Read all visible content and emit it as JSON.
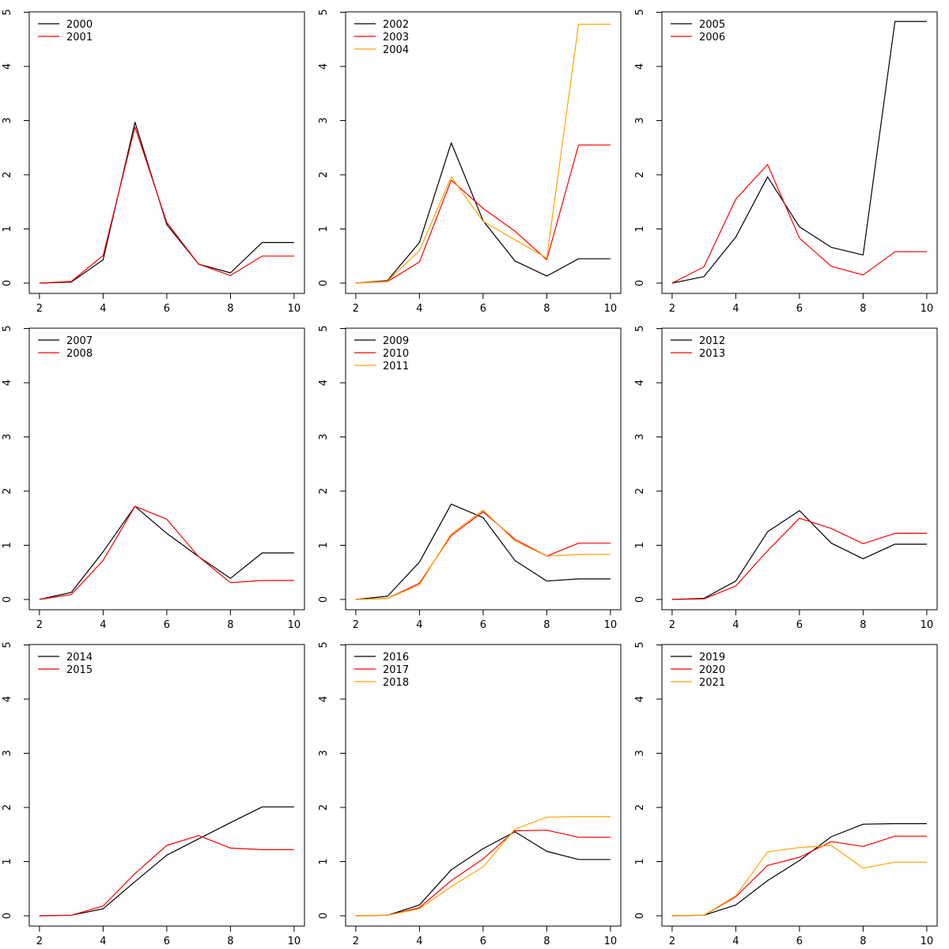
{
  "chart_data": [
    {
      "type": "line",
      "x": [
        2,
        3,
        4,
        5,
        6,
        7,
        8,
        9,
        10
      ],
      "xlim": [
        2,
        10
      ],
      "ylim": [
        0,
        5
      ],
      "xticks": [
        "2",
        "4",
        "6",
        "8",
        "10"
      ],
      "yticks": [
        "0",
        "1",
        "2",
        "3",
        "4",
        "5"
      ],
      "legend_position": "top-left",
      "series": [
        {
          "name": "2000",
          "color": "#000000",
          "values": [
            0,
            0.02,
            0.43,
            2.97,
            1.08,
            0.35,
            0.19,
            0.75,
            0.75
          ]
        },
        {
          "name": "2001",
          "color": "#ff0000",
          "values": [
            0,
            0.03,
            0.51,
            2.88,
            1.12,
            0.35,
            0.14,
            0.5,
            0.5
          ]
        }
      ]
    },
    {
      "type": "line",
      "x": [
        2,
        3,
        4,
        5,
        6,
        7,
        8,
        9,
        10
      ],
      "xlim": [
        2,
        10
      ],
      "ylim": [
        0,
        5
      ],
      "xticks": [
        "2",
        "4",
        "6",
        "8",
        "10"
      ],
      "yticks": [
        "0",
        "1",
        "2",
        "3",
        "4",
        "5"
      ],
      "legend_position": "top-left",
      "series": [
        {
          "name": "2002",
          "color": "#000000",
          "values": [
            0,
            0.05,
            0.75,
            2.59,
            1.15,
            0.41,
            0.13,
            0.45,
            0.45
          ]
        },
        {
          "name": "2003",
          "color": "#ff0000",
          "values": [
            0,
            0.03,
            0.39,
            1.9,
            1.38,
            0.96,
            0.43,
            2.55,
            2.55
          ]
        },
        {
          "name": "2004",
          "color": "#ffa500",
          "values": [
            0,
            0.04,
            0.6,
            1.96,
            1.14,
            0.8,
            0.46,
            4.78,
            4.78
          ]
        }
      ]
    },
    {
      "type": "line",
      "x": [
        2,
        3,
        4,
        5,
        6,
        7,
        8,
        9,
        10
      ],
      "xlim": [
        2,
        10
      ],
      "ylim": [
        0,
        5
      ],
      "xticks": [
        "2",
        "4",
        "6",
        "8",
        "10"
      ],
      "yticks": [
        "0",
        "1",
        "2",
        "3",
        "4",
        "5"
      ],
      "legend_position": "top-left",
      "series": [
        {
          "name": "2005",
          "color": "#000000",
          "values": [
            0,
            0.12,
            0.85,
            1.96,
            1.04,
            0.66,
            0.52,
            4.83,
            4.83
          ]
        },
        {
          "name": "2006",
          "color": "#ff0000",
          "values": [
            0,
            0.3,
            1.55,
            2.19,
            0.83,
            0.31,
            0.15,
            0.58,
            0.58
          ]
        }
      ]
    },
    {
      "type": "line",
      "x": [
        2,
        3,
        4,
        5,
        6,
        7,
        8,
        9,
        10
      ],
      "xlim": [
        2,
        10
      ],
      "ylim": [
        0,
        5
      ],
      "xticks": [
        "2",
        "4",
        "6",
        "8",
        "10"
      ],
      "yticks": [
        "0",
        "1",
        "2",
        "3",
        "4",
        "5"
      ],
      "legend_position": "top-left",
      "series": [
        {
          "name": "2007",
          "color": "#000000",
          "values": [
            0,
            0.13,
            0.88,
            1.72,
            1.22,
            0.79,
            0.39,
            0.86,
            0.86
          ]
        },
        {
          "name": "2008",
          "color": "#ff0000",
          "values": [
            0,
            0.09,
            0.72,
            1.72,
            1.48,
            0.79,
            0.31,
            0.35,
            0.35
          ]
        }
      ]
    },
    {
      "type": "line",
      "x": [
        2,
        3,
        4,
        5,
        6,
        7,
        8,
        9,
        10
      ],
      "xlim": [
        2,
        10
      ],
      "ylim": [
        0,
        5
      ],
      "xticks": [
        "2",
        "4",
        "6",
        "8",
        "10"
      ],
      "yticks": [
        "0",
        "1",
        "2",
        "3",
        "4",
        "5"
      ],
      "legend_position": "top-left",
      "series": [
        {
          "name": "2009",
          "color": "#000000",
          "values": [
            0,
            0.06,
            0.69,
            1.76,
            1.51,
            0.72,
            0.34,
            0.38,
            0.38
          ]
        },
        {
          "name": "2010",
          "color": "#ff0000",
          "values": [
            0,
            0.02,
            0.3,
            1.18,
            1.62,
            1.11,
            0.8,
            1.04,
            1.04
          ]
        },
        {
          "name": "2011",
          "color": "#ffa500",
          "values": [
            0,
            0.02,
            0.27,
            1.21,
            1.65,
            1.08,
            0.8,
            0.83,
            0.83
          ]
        }
      ]
    },
    {
      "type": "line",
      "x": [
        2,
        3,
        4,
        5,
        6,
        7,
        8,
        9,
        10
      ],
      "xlim": [
        2,
        10
      ],
      "ylim": [
        0,
        5
      ],
      "xticks": [
        "2",
        "4",
        "6",
        "8",
        "10"
      ],
      "yticks": [
        "0",
        "1",
        "2",
        "3",
        "4",
        "5"
      ],
      "legend_position": "top-left",
      "series": [
        {
          "name": "2012",
          "color": "#000000",
          "values": [
            0,
            0.02,
            0.34,
            1.25,
            1.64,
            1.04,
            0.75,
            1.02,
            1.02
          ]
        },
        {
          "name": "2013",
          "color": "#ff0000",
          "values": [
            0,
            0.01,
            0.25,
            0.9,
            1.5,
            1.31,
            1.03,
            1.22,
            1.22
          ]
        }
      ]
    },
    {
      "type": "line",
      "x": [
        2,
        3,
        4,
        5,
        6,
        7,
        8,
        9,
        10
      ],
      "xlim": [
        2,
        10
      ],
      "ylim": [
        0,
        5
      ],
      "xticks": [
        "2",
        "4",
        "6",
        "8",
        "10"
      ],
      "yticks": [
        "0",
        "1",
        "2",
        "3",
        "4",
        "5"
      ],
      "legend_position": "top-left",
      "series": [
        {
          "name": "2014",
          "color": "#000000",
          "values": [
            0,
            0.01,
            0.13,
            0.63,
            1.12,
            1.42,
            1.72,
            2.01,
            2.01
          ]
        },
        {
          "name": "2015",
          "color": "#ff0000",
          "values": [
            0,
            0.01,
            0.18,
            0.78,
            1.3,
            1.48,
            1.25,
            1.22,
            1.22
          ]
        }
      ]
    },
    {
      "type": "line",
      "x": [
        2,
        3,
        4,
        5,
        6,
        7,
        8,
        9,
        10
      ],
      "xlim": [
        2,
        10
      ],
      "ylim": [
        0,
        5
      ],
      "xticks": [
        "2",
        "4",
        "6",
        "8",
        "10"
      ],
      "yticks": [
        "0",
        "1",
        "2",
        "3",
        "4",
        "5"
      ],
      "legend_position": "top-left",
      "series": [
        {
          "name": "2016",
          "color": "#000000",
          "values": [
            0,
            0.01,
            0.2,
            0.85,
            1.24,
            1.55,
            1.19,
            1.04,
            1.04
          ]
        },
        {
          "name": "2017",
          "color": "#ff0000",
          "values": [
            0,
            0.01,
            0.15,
            0.65,
            1.05,
            1.57,
            1.58,
            1.45,
            1.45
          ]
        },
        {
          "name": "2018",
          "color": "#ffa500",
          "values": [
            0,
            0.01,
            0.13,
            0.54,
            0.9,
            1.6,
            1.82,
            1.83,
            1.83
          ]
        }
      ]
    },
    {
      "type": "line",
      "x": [
        2,
        3,
        4,
        5,
        6,
        7,
        8,
        9,
        10
      ],
      "xlim": [
        2,
        10
      ],
      "ylim": [
        0,
        5
      ],
      "xticks": [
        "2",
        "4",
        "6",
        "8",
        "10"
      ],
      "yticks": [
        "0",
        "1",
        "2",
        "3",
        "4",
        "5"
      ],
      "legend_position": "top-left",
      "series": [
        {
          "name": "2019",
          "color": "#000000",
          "values": [
            0,
            0.01,
            0.2,
            0.65,
            1.02,
            1.46,
            1.69,
            1.7,
            1.7
          ]
        },
        {
          "name": "2020",
          "color": "#ff0000",
          "values": [
            0,
            0.01,
            0.35,
            0.93,
            1.08,
            1.37,
            1.28,
            1.47,
            1.47
          ]
        },
        {
          "name": "2021",
          "color": "#ffa500",
          "values": [
            0,
            0.01,
            0.37,
            1.18,
            1.26,
            1.3,
            0.88,
            0.99,
            0.99
          ]
        }
      ]
    }
  ]
}
